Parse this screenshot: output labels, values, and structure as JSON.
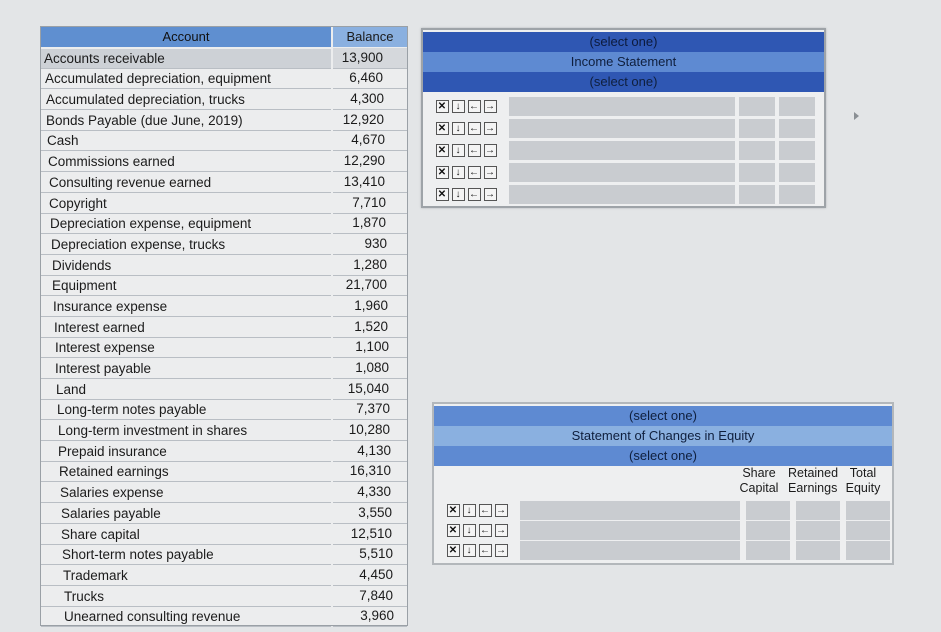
{
  "accounts": {
    "header": {
      "account": "Account",
      "balance": "Balance"
    },
    "rows": [
      {
        "account": "Accounts receivable",
        "balance": "13,900"
      },
      {
        "account": "Accumulated depreciation, equipment",
        "balance": "6,460"
      },
      {
        "account": "Accumulated depreciation, trucks",
        "balance": "4,300"
      },
      {
        "account": "Bonds Payable (due June, 2019)",
        "balance": "12,920"
      },
      {
        "account": "Cash",
        "balance": "4,670"
      },
      {
        "account": "Commissions earned",
        "balance": "12,290"
      },
      {
        "account": "Consulting revenue earned",
        "balance": "13,410"
      },
      {
        "account": "Copyright",
        "balance": "7,710"
      },
      {
        "account": "Depreciation expense, equipment",
        "balance": "1,870"
      },
      {
        "account": "Depreciation expense, trucks",
        "balance": "930"
      },
      {
        "account": "Dividends",
        "balance": "1,280"
      },
      {
        "account": "Equipment",
        "balance": "21,700"
      },
      {
        "account": "Insurance expense",
        "balance": "1,960"
      },
      {
        "account": "Interest earned",
        "balance": "1,520"
      },
      {
        "account": "Interest expense",
        "balance": "1,100"
      },
      {
        "account": "Interest payable",
        "balance": "1,080"
      },
      {
        "account": "Land",
        "balance": "15,040"
      },
      {
        "account": "Long-term notes payable",
        "balance": "7,370"
      },
      {
        "account": "Long-term investment in shares",
        "balance": "10,280"
      },
      {
        "account": "Prepaid insurance",
        "balance": "4,130"
      },
      {
        "account": "Retained earnings",
        "balance": "16,310"
      },
      {
        "account": "Salaries expense",
        "balance": "4,330"
      },
      {
        "account": "Salaries payable",
        "balance": "3,550"
      },
      {
        "account": "Share capital",
        "balance": "12,510"
      },
      {
        "account": "Short-term notes payable",
        "balance": "5,510"
      },
      {
        "account": "Trademark",
        "balance": "4,450"
      },
      {
        "account": "Trucks",
        "balance": "7,840"
      },
      {
        "account": "Unearned consulting revenue",
        "balance": "3,960"
      }
    ]
  },
  "income_statement": {
    "company_select": "(select one)",
    "title": "Income Statement",
    "period_select": "(select one)",
    "line_count": 5
  },
  "equity_statement": {
    "company_select": "(select one)",
    "title": "Statement of Changes in Equity",
    "period_select": "(select one)",
    "columns": [
      "Share Capital",
      "Retained Earnings",
      "Total Equity"
    ],
    "line_count": 3
  },
  "controls": {
    "delete": "✕",
    "down": "↓",
    "outdent": "←",
    "indent": "→"
  }
}
